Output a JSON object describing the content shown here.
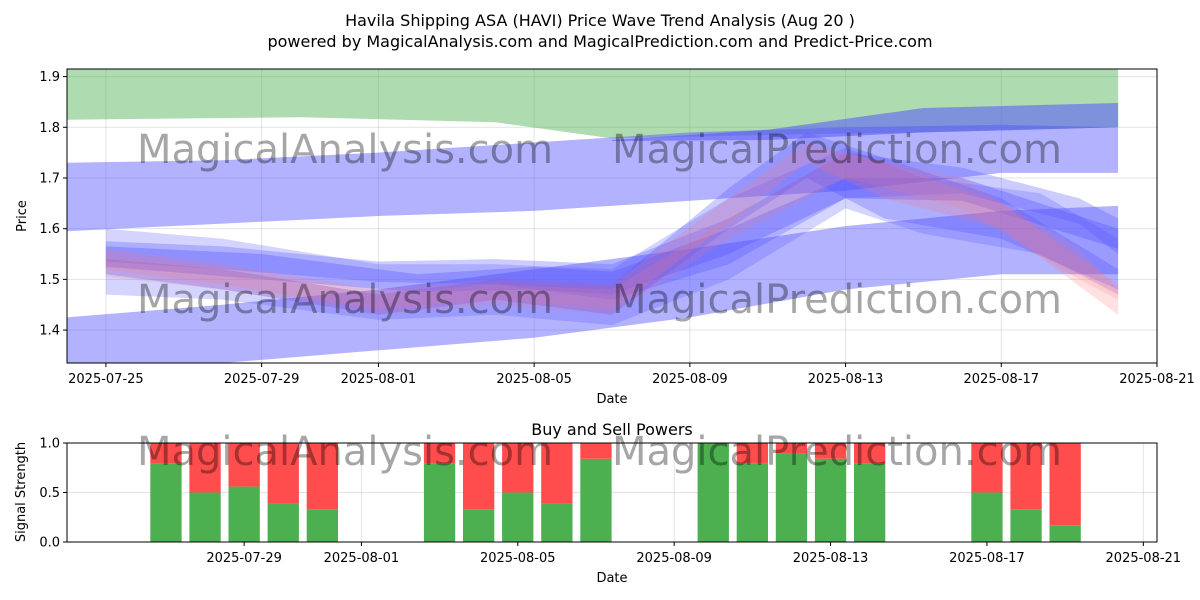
{
  "title": "Havila Shipping ASA (HAVI) Price Wave Trend Analysis (Aug 20 )",
  "subtitle": "powered by MagicalAnalysis.com and MagicalPrediction.com and Predict-Price.com",
  "watermarks": [
    "MagicalAnalysis.com",
    "MagicalPrediction.com"
  ],
  "colors": {
    "green_band": "#4caf50",
    "blue_band": "#5555ff",
    "red_band": "#ff7777",
    "buy": "#4caf50",
    "sell": "#ff4c4c"
  },
  "chart_data": [
    {
      "type": "area",
      "name": "price-wave",
      "title": "",
      "xlabel": "Date",
      "ylabel": "Price",
      "xlim": [
        "2025-07-24",
        "2025-08-21"
      ],
      "ylim": [
        1.335,
        1.915
      ],
      "yticks": [
        1.4,
        1.5,
        1.6,
        1.7,
        1.8,
        1.9
      ],
      "xticks": [
        "2025-07-25",
        "2025-07-29",
        "2025-08-01",
        "2025-08-05",
        "2025-08-09",
        "2025-08-13",
        "2025-08-17",
        "2025-08-21"
      ],
      "grid": true,
      "bands": [
        {
          "name": "green-upper-band",
          "color": "green",
          "opacity": 0.45,
          "x": [
            "2025-07-24",
            "2025-07-30",
            "2025-08-04",
            "2025-08-07",
            "2025-08-11",
            "2025-08-15",
            "2025-08-20"
          ],
          "upper": [
            1.915,
            1.915,
            1.915,
            1.915,
            1.915,
            1.915,
            1.915
          ],
          "lower": [
            1.815,
            1.82,
            1.81,
            1.778,
            1.785,
            1.79,
            1.8
          ]
        },
        {
          "name": "blue-upper-channel",
          "color": "blue",
          "opacity": 0.45,
          "x": [
            "2025-07-24",
            "2025-07-28",
            "2025-08-01",
            "2025-08-05",
            "2025-08-09",
            "2025-08-13",
            "2025-08-17",
            "2025-08-20"
          ],
          "upper": [
            1.73,
            1.735,
            1.75,
            1.77,
            1.79,
            1.8,
            1.805,
            1.8
          ],
          "lower": [
            1.595,
            1.61,
            1.625,
            1.635,
            1.655,
            1.675,
            1.71,
            1.71
          ]
        },
        {
          "name": "blue-top-channel",
          "color": "blue",
          "opacity": 0.55,
          "x": [
            "2025-08-07",
            "2025-08-11",
            "2025-08-15",
            "2025-08-20"
          ],
          "upper": [
            1.775,
            1.795,
            1.838,
            1.848
          ],
          "lower": [
            1.773,
            1.775,
            1.79,
            1.8
          ]
        },
        {
          "name": "blue-lower-channel",
          "color": "blue",
          "opacity": 0.45,
          "x": [
            "2025-07-24",
            "2025-07-28",
            "2025-08-01",
            "2025-08-05",
            "2025-08-09",
            "2025-08-13",
            "2025-08-17",
            "2025-08-20"
          ],
          "upper": [
            1.425,
            1.45,
            1.48,
            1.52,
            1.56,
            1.605,
            1.635,
            1.645
          ],
          "lower": [
            1.335,
            1.335,
            1.36,
            1.385,
            1.425,
            1.48,
            1.51,
            1.51
          ]
        },
        {
          "name": "blue-wave-1",
          "color": "blue",
          "opacity": 0.3,
          "x": [
            "2025-07-25",
            "2025-07-28",
            "2025-08-01",
            "2025-08-04",
            "2025-08-07",
            "2025-08-10",
            "2025-08-13",
            "2025-08-16",
            "2025-08-19",
            "2025-08-20"
          ],
          "upper": [
            1.575,
            1.565,
            1.535,
            1.54,
            1.53,
            1.62,
            1.75,
            1.72,
            1.66,
            1.62
          ],
          "lower": [
            1.535,
            1.52,
            1.495,
            1.49,
            1.46,
            1.53,
            1.66,
            1.67,
            1.61,
            1.55
          ]
        },
        {
          "name": "blue-wave-2",
          "color": "blue",
          "opacity": 0.3,
          "x": [
            "2025-07-25",
            "2025-07-28",
            "2025-08-01",
            "2025-08-04",
            "2025-08-07",
            "2025-08-10",
            "2025-08-12",
            "2025-08-14",
            "2025-08-17",
            "2025-08-20"
          ],
          "upper": [
            1.54,
            1.52,
            1.47,
            1.5,
            1.49,
            1.68,
            1.79,
            1.74,
            1.66,
            1.52
          ],
          "lower": [
            1.51,
            1.48,
            1.43,
            1.46,
            1.43,
            1.6,
            1.7,
            1.62,
            1.58,
            1.48
          ]
        },
        {
          "name": "blue-wave-3",
          "color": "blue",
          "opacity": 0.25,
          "x": [
            "2025-07-25",
            "2025-07-28",
            "2025-08-01",
            "2025-08-04",
            "2025-08-07",
            "2025-08-10",
            "2025-08-13",
            "2025-08-15",
            "2025-08-18",
            "2025-08-20"
          ],
          "upper": [
            1.6,
            1.58,
            1.53,
            1.53,
            1.52,
            1.66,
            1.76,
            1.7,
            1.67,
            1.58
          ],
          "lower": [
            1.47,
            1.46,
            1.42,
            1.43,
            1.41,
            1.5,
            1.64,
            1.59,
            1.55,
            1.47
          ]
        },
        {
          "name": "blue-wave-4",
          "color": "blue",
          "opacity": 0.35,
          "x": [
            "2025-07-25",
            "2025-07-29",
            "2025-08-02",
            "2025-08-05",
            "2025-08-07",
            "2025-08-10",
            "2025-08-13",
            "2025-08-16",
            "2025-08-20"
          ],
          "upper": [
            1.565,
            1.55,
            1.51,
            1.525,
            1.515,
            1.6,
            1.7,
            1.7,
            1.6
          ],
          "lower": [
            1.525,
            1.5,
            1.475,
            1.48,
            1.47,
            1.55,
            1.66,
            1.655,
            1.56
          ]
        },
        {
          "name": "red-wave-1",
          "color": "red",
          "opacity": 0.22,
          "x": [
            "2025-07-25",
            "2025-07-28",
            "2025-08-01",
            "2025-08-04",
            "2025-08-07",
            "2025-08-10",
            "2025-08-12",
            "2025-08-14",
            "2025-08-17",
            "2025-08-20"
          ],
          "upper": [
            1.56,
            1.53,
            1.48,
            1.5,
            1.49,
            1.66,
            1.77,
            1.73,
            1.65,
            1.49
          ],
          "lower": [
            1.52,
            1.49,
            1.44,
            1.46,
            1.44,
            1.61,
            1.73,
            1.66,
            1.6,
            1.43
          ]
        },
        {
          "name": "red-wave-2",
          "color": "red",
          "opacity": 0.18,
          "x": [
            "2025-07-25",
            "2025-07-28",
            "2025-08-01",
            "2025-08-04",
            "2025-08-07",
            "2025-08-10",
            "2025-08-13",
            "2025-08-16",
            "2025-08-19",
            "2025-08-20"
          ],
          "upper": [
            1.545,
            1.52,
            1.47,
            1.49,
            1.48,
            1.62,
            1.75,
            1.7,
            1.56,
            1.48
          ],
          "lower": [
            1.505,
            1.48,
            1.43,
            1.45,
            1.43,
            1.58,
            1.7,
            1.64,
            1.5,
            1.46
          ]
        }
      ]
    },
    {
      "type": "bar",
      "name": "buy-sell-powers",
      "title": "Buy and Sell Powers",
      "xlabel": "Date",
      "ylabel": "Signal Strength",
      "xlim": [
        "2025-07-25",
        "2025-08-21"
      ],
      "ylim": [
        0.0,
        1.0
      ],
      "yticks": [
        "0.0",
        "0.5",
        "1.0"
      ],
      "xticks": [
        "2025-07-29",
        "2025-08-01",
        "2025-08-05",
        "2025-08-09",
        "2025-08-13",
        "2025-08-17",
        "2025-08-21"
      ],
      "grid": true,
      "categories": [
        "2025-07-27",
        "2025-07-28",
        "2025-07-29",
        "2025-07-30",
        "2025-07-31",
        "2025-08-03",
        "2025-08-04",
        "2025-08-05",
        "2025-08-06",
        "2025-08-07",
        "2025-08-10",
        "2025-08-11",
        "2025-08-12",
        "2025-08-13",
        "2025-08-14",
        "2025-08-17",
        "2025-08-18",
        "2025-08-19"
      ],
      "series": [
        {
          "name": "Buy",
          "color": "buy",
          "values": [
            0.79,
            0.5,
            0.56,
            0.39,
            0.33,
            0.79,
            0.33,
            0.5,
            0.39,
            0.84,
            1.0,
            0.79,
            0.89,
            0.84,
            0.79,
            0.5,
            0.33,
            0.17
          ]
        },
        {
          "name": "Sell",
          "color": "sell",
          "values": [
            0.21,
            0.5,
            0.44,
            0.61,
            0.67,
            0.21,
            0.67,
            0.5,
            0.61,
            0.16,
            0.0,
            0.21,
            0.11,
            0.16,
            0.21,
            0.5,
            0.67,
            0.83
          ]
        }
      ]
    }
  ]
}
